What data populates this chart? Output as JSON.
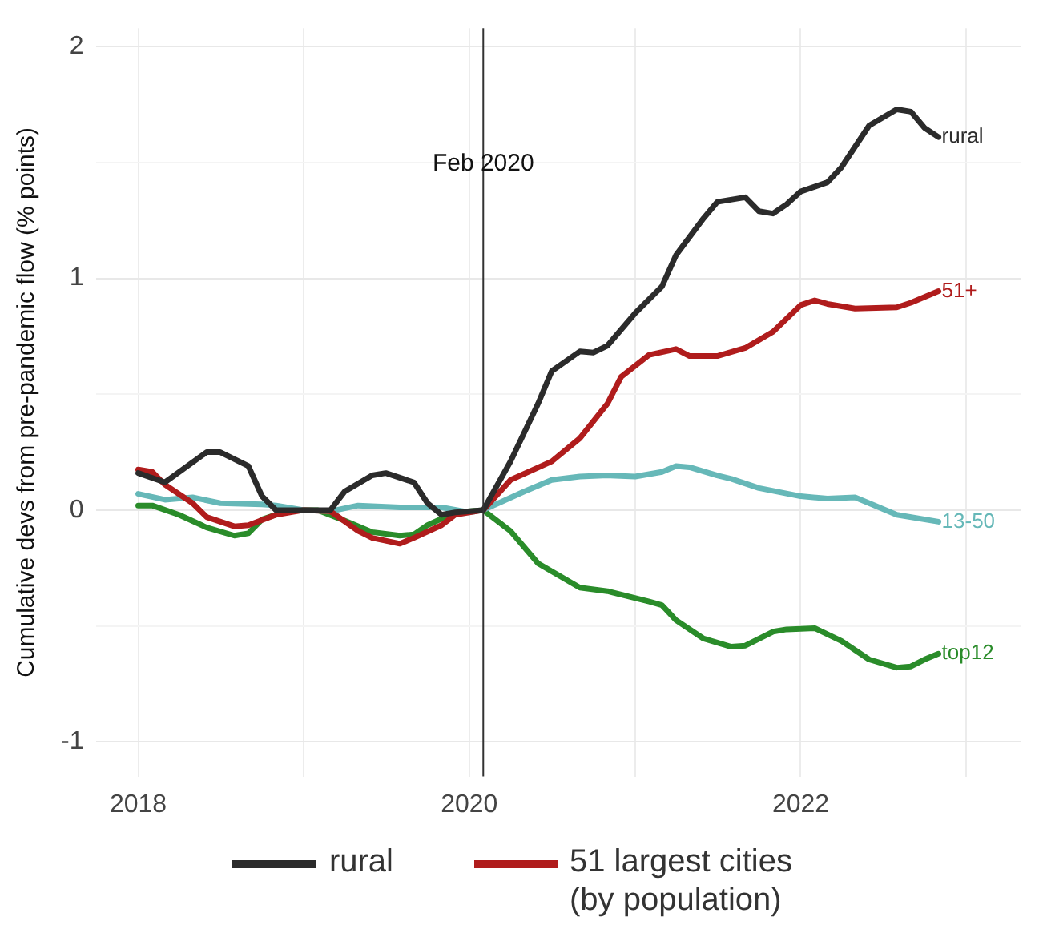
{
  "chart_data": {
    "type": "line",
    "ylabel": "Cumulative devs from pre-pandemic flow (% points)",
    "xlim": [
      "2017-10",
      "2023-05"
    ],
    "xticks": [
      "2018",
      {
        "value": "2019",
        "label": null
      },
      "2020",
      {
        "value": "2021",
        "label": null
      },
      "2022",
      {
        "value": "2023",
        "label": null
      }
    ],
    "ylim": [
      -1.15,
      2.08
    ],
    "yticks": [
      -1,
      {
        "value": -0.5,
        "label": null
      },
      0,
      {
        "value": 0.5,
        "label": null
      },
      1,
      {
        "value": 1.5,
        "label": null
      },
      2
    ],
    "grid": true,
    "legend": "bottom",
    "marker": "none",
    "line_style": "solid",
    "ref_lines": [
      {
        "axis": "x",
        "value": "2020-02",
        "label": "Feb 2020",
        "color": "#333333"
      }
    ],
    "annotations": [
      {
        "text": "rural",
        "x": "2022-11",
        "y": 1.61
      },
      {
        "text": "51+",
        "x": "2022-11",
        "y": 0.945
      },
      {
        "text": "13-50",
        "x": "2022-11",
        "y": -0.05
      },
      {
        "text": "top12",
        "x": "2022-11",
        "y": -0.62
      }
    ],
    "series": [
      {
        "name": "rural",
        "color": "#2b2b2b",
        "x": [
          "2018-01",
          "2018-03",
          "2018-06",
          "2018-07",
          "2018-09",
          "2018-10",
          "2018-11",
          "2019-03",
          "2019-04",
          "2019-06",
          "2019-07",
          "2019-09",
          "2019-10",
          "2019-11",
          "2019-12",
          "2020-02",
          "2020-04",
          "2020-06",
          "2020-07",
          "2020-09",
          "2020-10",
          "2020-11",
          "2021-01",
          "2021-03",
          "2021-04",
          "2021-06",
          "2021-07",
          "2021-09",
          "2021-10",
          "2021-11",
          "2021-12",
          "2022-01",
          "2022-03",
          "2022-04",
          "2022-06",
          "2022-08",
          "2022-09",
          "2022-10",
          "2022-11"
        ],
        "values": [
          0.16,
          0.12,
          0.25,
          0.25,
          0.19,
          0.06,
          0.0,
          0.0,
          0.08,
          0.15,
          0.16,
          0.12,
          0.03,
          -0.02,
          -0.01,
          0,
          0.21,
          0.46,
          0.6,
          0.685,
          0.68,
          0.71,
          0.85,
          0.965,
          1.1,
          1.26,
          1.33,
          1.35,
          1.29,
          1.28,
          1.32,
          1.375,
          1.415,
          1.48,
          1.66,
          1.73,
          1.72,
          1.65,
          1.61
        ]
      },
      {
        "name": "51 largest cities (by population)",
        "color": "#b01c1c",
        "x": [
          "2018-01",
          "2018-02",
          "2018-03",
          "2018-05",
          "2018-06",
          "2018-08",
          "2018-09",
          "2018-11",
          "2019-01",
          "2019-03",
          "2019-05",
          "2019-06",
          "2019-08",
          "2019-09",
          "2019-11",
          "2019-12",
          "2020-02",
          "2020-04",
          "2020-07",
          "2020-09",
          "2020-11",
          "2020-12",
          "2021-02",
          "2021-04",
          "2021-05",
          "2021-07",
          "2021-09",
          "2021-11",
          "2022-01",
          "2022-02",
          "2022-03",
          "2022-05",
          "2022-08",
          "2022-09",
          "2022-11"
        ],
        "values": [
          0.175,
          0.165,
          0.11,
          0.03,
          -0.03,
          -0.07,
          -0.065,
          -0.02,
          0,
          -0.005,
          -0.09,
          -0.12,
          -0.145,
          -0.12,
          -0.065,
          -0.02,
          0,
          0.13,
          0.21,
          0.31,
          0.46,
          0.575,
          0.67,
          0.695,
          0.665,
          0.665,
          0.7,
          0.77,
          0.885,
          0.905,
          0.89,
          0.87,
          0.875,
          0.895,
          0.945
        ]
      },
      {
        "color": "#66b8b8",
        "x": [
          "2018-01",
          "2018-03",
          "2018-05",
          "2018-07",
          "2018-10",
          "2018-11",
          "2019-01",
          "2019-03",
          "2019-05",
          "2019-08",
          "2019-11",
          "2020-01",
          "2020-02",
          "2020-05",
          "2020-07",
          "2020-09",
          "2020-11",
          "2021-01",
          "2021-03",
          "2021-04",
          "2021-05",
          "2021-07",
          "2021-08",
          "2021-10",
          "2022-01",
          "2022-03",
          "2022-05",
          "2022-06",
          "2022-08",
          "2022-11"
        ],
        "values": [
          0.07,
          0.045,
          0.055,
          0.03,
          0.025,
          0.02,
          0,
          -0.005,
          0.02,
          0.012,
          0.012,
          -0.01,
          0,
          0.08,
          0.13,
          0.145,
          0.15,
          0.145,
          0.165,
          0.19,
          0.185,
          0.15,
          0.135,
          0.095,
          0.06,
          0.05,
          0.055,
          0.03,
          -0.02,
          -0.05
        ]
      },
      {
        "color": "#2a8c2a",
        "x": [
          "2018-01",
          "2018-02",
          "2018-04",
          "2018-06",
          "2018-08",
          "2018-09",
          "2018-10",
          "2018-12",
          "2019-02",
          "2019-04",
          "2019-06",
          "2019-08",
          "2019-09",
          "2019-10",
          "2019-12",
          "2020-02",
          "2020-04",
          "2020-06",
          "2020-09",
          "2020-11",
          "2021-02",
          "2021-03",
          "2021-04",
          "2021-06",
          "2021-08",
          "2021-09",
          "2021-11",
          "2021-12",
          "2022-02",
          "2022-04",
          "2022-06",
          "2022-08",
          "2022-09",
          "2022-10",
          "2022-11"
        ],
        "values": [
          0.02,
          0.02,
          -0.02,
          -0.075,
          -0.11,
          -0.1,
          -0.04,
          0,
          0,
          -0.045,
          -0.095,
          -0.11,
          -0.105,
          -0.065,
          -0.01,
          0,
          -0.09,
          -0.23,
          -0.335,
          -0.35,
          -0.395,
          -0.41,
          -0.475,
          -0.555,
          -0.59,
          -0.585,
          -0.525,
          -0.515,
          -0.51,
          -0.565,
          -0.645,
          -0.68,
          -0.675,
          -0.645,
          -0.62
        ]
      }
    ]
  }
}
